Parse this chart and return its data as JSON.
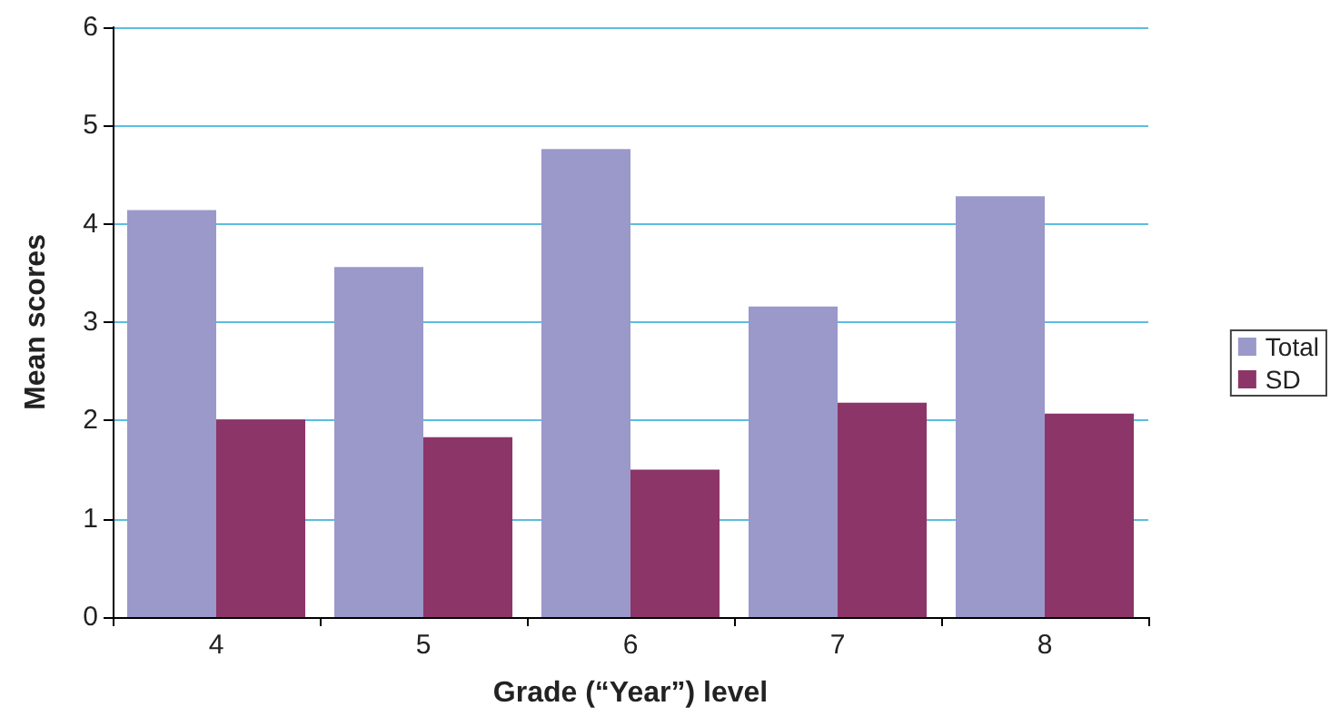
{
  "chart_data": {
    "type": "bar",
    "xlabel": "Grade (“Year”) level",
    "ylabel": "Mean scores",
    "categories": [
      "4",
      "5",
      "6",
      "7",
      "8"
    ],
    "series": [
      {
        "name": "Total",
        "color": "#9b98ca",
        "values": [
          4.14,
          3.56,
          4.76,
          3.16,
          4.28
        ]
      },
      {
        "name": "SD",
        "color": "#8c3568",
        "values": [
          2.01,
          1.83,
          1.5,
          2.18,
          2.07
        ]
      }
    ],
    "ylim": [
      0,
      6
    ],
    "yticks": [
      0,
      1,
      2,
      3,
      4,
      5,
      6
    ],
    "grid": "y",
    "legend": "right"
  }
}
